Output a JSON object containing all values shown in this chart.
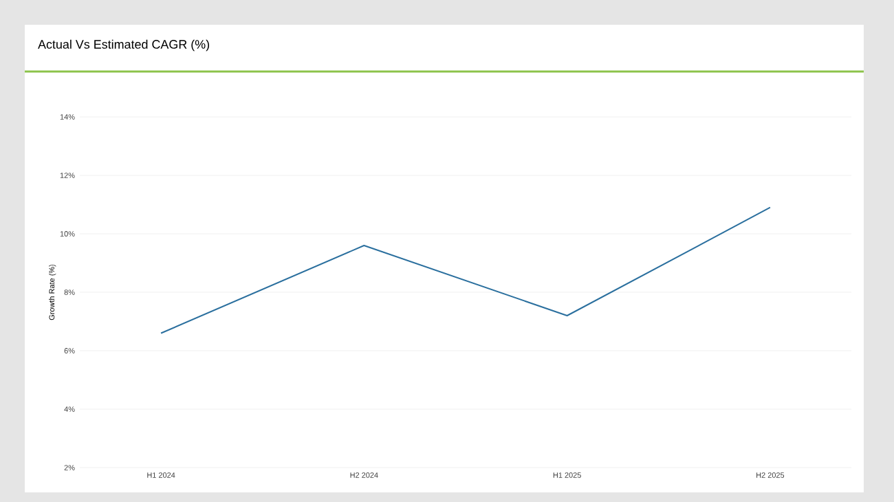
{
  "chart_data": {
    "type": "line",
    "title": "Actual Vs Estimated CAGR (%)",
    "ylabel": "Growth Rate (%)",
    "categories": [
      "H1 2024",
      "H2 2024",
      "H1 2025",
      "H2 2025"
    ],
    "series": [
      {
        "color": "#2a6f9e",
        "values": [
          6.6,
          9.6,
          7.2,
          10.9
        ]
      }
    ],
    "ylim": [
      2,
      14
    ],
    "yticks": [
      {
        "value": 2,
        "label": "2%"
      },
      {
        "value": 4,
        "label": "4%"
      },
      {
        "value": 6,
        "label": "6%"
      },
      {
        "value": 8,
        "label": "8%"
      },
      {
        "value": 10,
        "label": "10%"
      },
      {
        "value": 12,
        "label": "12%"
      },
      {
        "value": 14,
        "label": "14%"
      }
    ],
    "grid": "y",
    "marker": "none",
    "line_style": "solid"
  }
}
